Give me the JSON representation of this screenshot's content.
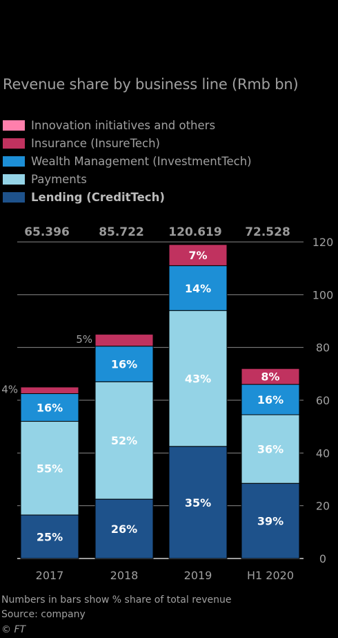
{
  "title": "Revenue share by business line (Rmb bn)",
  "legend": [
    {
      "label": "Innovation initiatives and others",
      "color": "#ff7fac",
      "bold": false
    },
    {
      "label": "Insurance (InsureTech)",
      "color": "#c0325f",
      "bold": false
    },
    {
      "label": "Wealth Management (InvestmentTech)",
      "color": "#1d8fd6",
      "bold": false
    },
    {
      "label": "Payments",
      "color": "#94d3e6",
      "bold": false
    },
    {
      "label": "Lending (CreditTech)",
      "color": "#1e528b",
      "bold": true
    }
  ],
  "chart_data": {
    "type": "bar",
    "stacked": true,
    "title": "Revenue share by business line (Rmb bn)",
    "categories": [
      "2017",
      "2018",
      "2019",
      "H1 2020"
    ],
    "totals_labels": [
      "65.396",
      "85.722",
      "120.619",
      "72.528"
    ],
    "totals": [
      65.396,
      85.722,
      120.619,
      72.528
    ],
    "ylim": [
      0,
      120
    ],
    "yticks": [
      0,
      20,
      40,
      60,
      80,
      100,
      120
    ],
    "y_axis_side": "right",
    "grid": true,
    "series": [
      {
        "name": "Lending (CreditTech)",
        "color": "#1e528b",
        "values": [
          16.5,
          22.5,
          42.5,
          28.5
        ],
        "labels": [
          "25%",
          "26%",
          "35%",
          "39%"
        ]
      },
      {
        "name": "Payments",
        "color": "#94d3e6",
        "values": [
          35.5,
          44.5,
          51.5,
          26
        ],
        "labels": [
          "55%",
          "52%",
          "43%",
          "36%"
        ]
      },
      {
        "name": "Wealth Management (InvestmentTech)",
        "color": "#1d8fd6",
        "values": [
          10.5,
          13.5,
          17,
          11.5
        ],
        "labels": [
          "16%",
          "16%",
          "14%",
          "16%"
        ]
      },
      {
        "name": "Insurance (InsureTech)",
        "color": "#c0325f",
        "values": [
          2.5,
          4.5,
          8,
          6
        ],
        "labels": [
          "4%",
          "5%",
          "7%",
          "8%"
        ]
      },
      {
        "name": "Innovation initiatives and others",
        "color": "#ff7fac",
        "values": [
          0,
          0,
          0,
          0
        ],
        "labels": [
          "",
          "",
          "",
          ""
        ]
      }
    ],
    "outside_labels": [
      {
        "category": "2017",
        "series": "Insurance (InsureTech)",
        "text": "4%"
      },
      {
        "category": "2018",
        "series": "Insurance (InsureTech)",
        "text": "5%"
      }
    ]
  },
  "footer": {
    "note": "Numbers in bars show % share of total revenue",
    "source": "Source: company",
    "credit": "© FT"
  }
}
